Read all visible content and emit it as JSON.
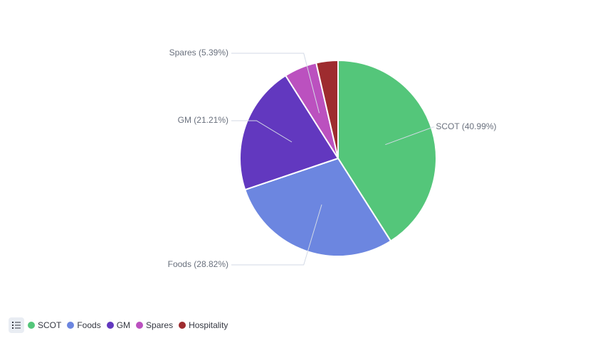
{
  "chart_data": {
    "type": "pie",
    "slices": [
      {
        "label": "SCOT",
        "percent": 40.99,
        "display": "SCOT (40.99%)",
        "color": "#54c67a"
      },
      {
        "label": "Foods",
        "percent": 28.82,
        "display": "Foods (28.82%)",
        "color": "#6c86e0"
      },
      {
        "label": "GM",
        "percent": 21.21,
        "display": "GM (21.21%)",
        "color": "#6238bf"
      },
      {
        "label": "Spares",
        "percent": 5.39,
        "display": "Spares (5.39%)",
        "color": "#bb51bf"
      },
      {
        "label": "Hospitality",
        "percent": 3.59,
        "display": "",
        "color": "#9e2c2f"
      }
    ],
    "start_angle": "12 o'clock",
    "direction": "clockwise",
    "legend_position": "bottom-left"
  },
  "legend": {
    "toggle_icon": "list-icon",
    "items": [
      "SCOT",
      "Foods",
      "GM",
      "Spares",
      "Hospitality"
    ]
  }
}
